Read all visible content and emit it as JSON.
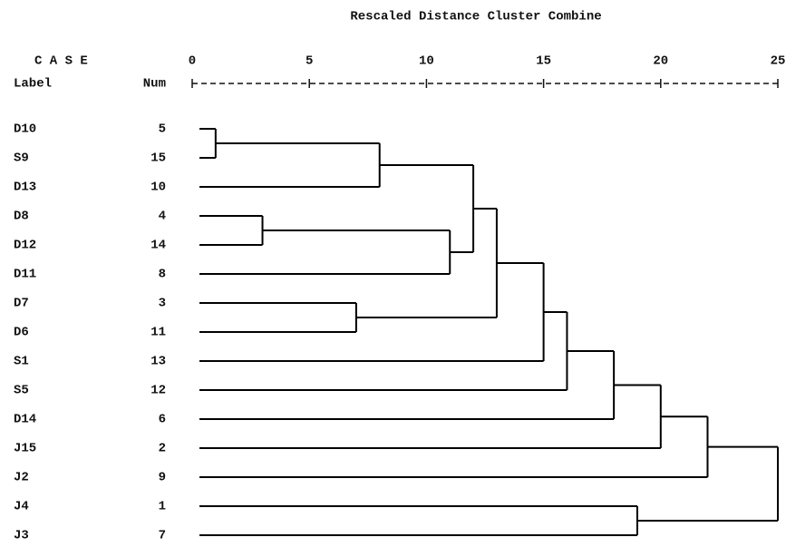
{
  "chart_data": {
    "type": "dendrogram",
    "title": "Rescaled Distance Cluster Combine",
    "case_header": "C A S E",
    "label_header": "Label",
    "num_header": "Num",
    "xlim": [
      0,
      25
    ],
    "xticks": [
      0,
      5,
      10,
      15,
      20,
      25
    ],
    "leaves": [
      {
        "label": "D10",
        "num": "5"
      },
      {
        "label": "S9",
        "num": "15"
      },
      {
        "label": "D13",
        "num": "10"
      },
      {
        "label": "D8",
        "num": "4"
      },
      {
        "label": "D12",
        "num": "14"
      },
      {
        "label": "D11",
        "num": "8"
      },
      {
        "label": "D7",
        "num": "3"
      },
      {
        "label": "D6",
        "num": "11"
      },
      {
        "label": "S1",
        "num": "13"
      },
      {
        "label": "S5",
        "num": "12"
      },
      {
        "label": "D14",
        "num": "6"
      },
      {
        "label": "J15",
        "num": "2"
      },
      {
        "label": "J2",
        "num": "9"
      },
      {
        "label": "J4",
        "num": "1"
      },
      {
        "label": "J3",
        "num": "7"
      }
    ],
    "merges": [
      {
        "join": [
          0,
          1
        ],
        "height": 1
      },
      {
        "join": [
          3,
          4
        ],
        "height": 3
      },
      {
        "join": [
          6,
          7
        ],
        "height": 7
      },
      {
        "join": [
          15,
          2
        ],
        "height": 8
      },
      {
        "join": [
          16,
          5
        ],
        "height": 11
      },
      {
        "join": [
          18,
          19
        ],
        "height": 12
      },
      {
        "join": [
          20,
          17
        ],
        "height": 13
      },
      {
        "join": [
          21,
          8
        ],
        "height": 15
      },
      {
        "join": [
          22,
          9
        ],
        "height": 16
      },
      {
        "join": [
          23,
          10
        ],
        "height": 18
      },
      {
        "join": [
          13,
          14
        ],
        "height": 19
      },
      {
        "join": [
          24,
          11
        ],
        "height": 20
      },
      {
        "join": [
          26,
          12
        ],
        "height": 22
      },
      {
        "join": [
          27,
          25
        ],
        "height": 25
      }
    ],
    "color": "#000000"
  }
}
